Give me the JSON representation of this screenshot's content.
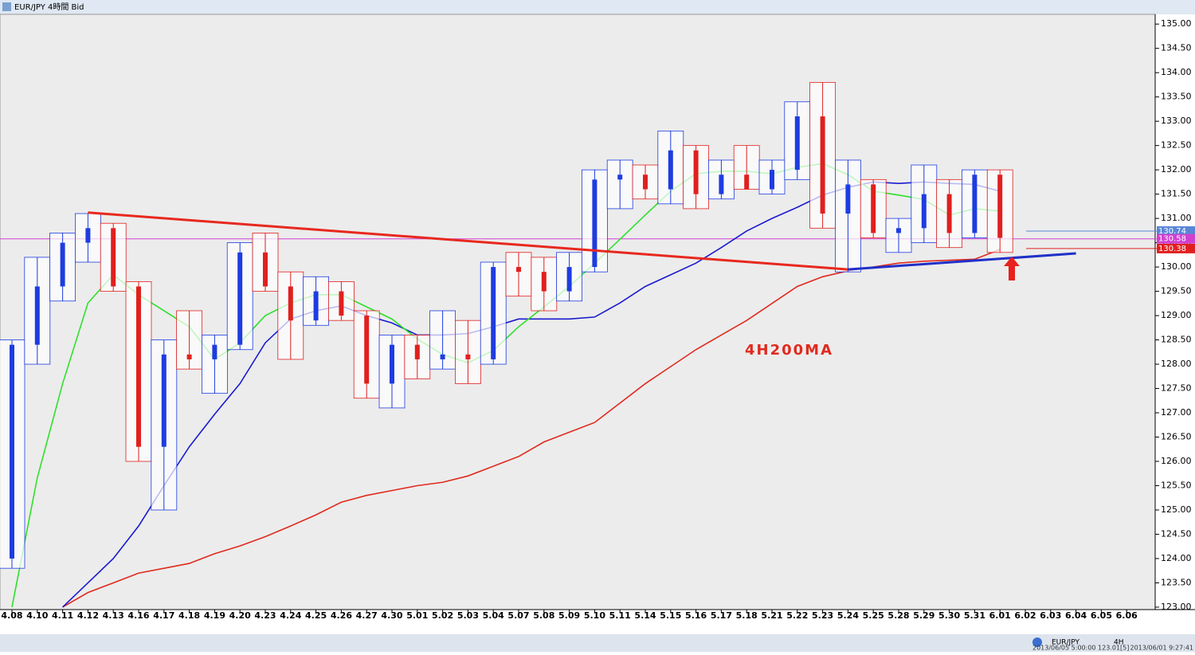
{
  "window_title": "EUR/JPY 4時間 Bid",
  "status": {
    "symbol": "EUR/JPY",
    "period": "4H",
    "left_info": "2013/06/05 5:00:00  123.01[5]",
    "right_info": "2013/06/01 9:27:41"
  },
  "chart_data": {
    "type": "candlestick",
    "categories": [
      "4.08",
      "4.10",
      "4.11",
      "4.12",
      "4.13",
      "4.16",
      "4.17",
      "4.18",
      "4.19",
      "4.20",
      "4.23",
      "4.24",
      "4.25",
      "4.26",
      "4.27",
      "4.30",
      "5.01",
      "5.02",
      "5.03",
      "5.04",
      "5.07",
      "5.08",
      "5.09",
      "5.10",
      "5.11",
      "5.14",
      "5.15",
      "5.16",
      "5.17",
      "5.18",
      "5.21",
      "5.22",
      "5.23",
      "5.24",
      "5.25",
      "5.28",
      "5.29",
      "5.30",
      "5.31",
      "6.01",
      "6.02",
      "6.03",
      "6.04",
      "6.05",
      "6.06"
    ],
    "open": [
      124.0,
      128.4,
      129.6,
      130.5,
      130.8,
      129.6,
      126.3,
      128.2,
      128.1,
      128.4,
      130.3,
      129.6,
      128.9,
      129.5,
      129.0,
      127.6,
      128.4,
      128.1,
      128.2,
      128.1,
      130.0,
      129.9,
      129.5,
      130.0,
      131.8,
      131.9,
      131.6,
      132.4,
      131.5,
      131.9,
      131.6,
      132.0,
      133.1,
      131.1,
      131.7,
      130.7,
      130.8,
      131.5,
      130.7,
      131.9,
      null,
      null,
      null,
      null,
      null
    ],
    "high": [
      128.5,
      130.2,
      130.7,
      131.1,
      130.9,
      129.7,
      128.5,
      129.1,
      128.6,
      130.5,
      130.7,
      129.9,
      129.8,
      129.7,
      129.1,
      128.6,
      128.6,
      129.1,
      128.9,
      130.1,
      130.3,
      130.2,
      130.3,
      132.0,
      132.2,
      132.1,
      132.8,
      132.5,
      132.2,
      132.5,
      132.2,
      133.4,
      133.8,
      132.2,
      131.8,
      131.0,
      132.1,
      131.8,
      132.0,
      132.0,
      null,
      null,
      null,
      null,
      null
    ],
    "low": [
      123.8,
      128.0,
      129.3,
      130.1,
      129.5,
      126.0,
      125.0,
      127.9,
      127.4,
      128.3,
      129.5,
      128.1,
      128.8,
      128.9,
      127.3,
      127.1,
      127.7,
      127.9,
      127.6,
      128.0,
      129.4,
      129.1,
      129.3,
      129.9,
      131.2,
      131.4,
      131.3,
      131.2,
      131.4,
      131.6,
      131.5,
      131.8,
      130.8,
      129.9,
      130.6,
      130.3,
      130.5,
      130.4,
      130.6,
      130.3,
      null,
      null,
      null,
      null,
      null
    ],
    "close": [
      128.4,
      129.6,
      130.5,
      130.8,
      129.6,
      126.3,
      128.2,
      128.1,
      128.4,
      130.3,
      129.6,
      128.9,
      129.5,
      129.0,
      127.6,
      128.4,
      128.1,
      128.2,
      128.1,
      130.0,
      129.9,
      129.5,
      130.0,
      131.8,
      131.9,
      131.6,
      132.4,
      131.5,
      131.9,
      131.6,
      132.0,
      133.1,
      131.1,
      131.7,
      130.7,
      130.8,
      131.5,
      130.7,
      131.9,
      130.6,
      null,
      null,
      null,
      null,
      null
    ],
    "up_color": "#1e3ce0",
    "down_color": "#e0201e",
    "ylim": [
      122.95,
      135.2
    ],
    "yticks": [
      {
        "value": 123,
        "label": "123.00"
      },
      {
        "value": 123.5,
        "label": "123.50"
      },
      {
        "value": 124,
        "label": "124.00"
      },
      {
        "value": 124.5,
        "label": "124.50"
      },
      {
        "value": 125,
        "label": "125.00"
      },
      {
        "value": 125.5,
        "label": "125.50"
      },
      {
        "value": 126,
        "label": "126.00"
      },
      {
        "value": 126.5,
        "label": "126.50"
      },
      {
        "value": 127,
        "label": "127.00"
      },
      {
        "value": 127.5,
        "label": "127.50"
      },
      {
        "value": 128,
        "label": "128.00"
      },
      {
        "value": 128.5,
        "label": "128.50"
      },
      {
        "value": 129,
        "label": "129.00"
      },
      {
        "value": 129.5,
        "label": "129.50"
      },
      {
        "value": 130,
        "label": "130.00"
      },
      {
        "value": 130.5,
        "label": "130.50"
      },
      {
        "value": 131,
        "label": "131.00"
      },
      {
        "value": 131.5,
        "label": "131.50"
      },
      {
        "value": 132,
        "label": "132.00"
      },
      {
        "value": 132.5,
        "label": "132.50"
      },
      {
        "value": 133,
        "label": "133.00"
      },
      {
        "value": 133.5,
        "label": "133.50"
      },
      {
        "value": 134,
        "label": "134.00"
      },
      {
        "value": 134.5,
        "label": "134.50"
      },
      {
        "value": 135,
        "label": "135.00"
      }
    ],
    "overlays": [
      {
        "color": "#e02a1e",
        "values": [
          null,
          null,
          123.0,
          123.3,
          123.5,
          123.7,
          123.8,
          123.9,
          124.1,
          124.26,
          124.45,
          124.67,
          124.9,
          125.16,
          125.3,
          125.4,
          125.5,
          125.57,
          125.7,
          125.9,
          126.1,
          126.4,
          126.6,
          126.8,
          127.2,
          127.6,
          127.95,
          128.3,
          128.6,
          128.9,
          129.25,
          129.6,
          129.8,
          129.92,
          130.0,
          130.08,
          130.12,
          130.14,
          130.16,
          130.36,
          null,
          null,
          null,
          null,
          null
        ]
      },
      {
        "color": "#1a1ad0",
        "values": [
          null,
          null,
          123.0,
          123.5,
          124.0,
          124.67,
          125.5,
          126.3,
          126.97,
          127.6,
          128.44,
          128.93,
          129.1,
          129.2,
          129.0,
          128.85,
          128.6,
          128.6,
          128.63,
          128.77,
          128.93,
          128.93,
          128.93,
          128.97,
          129.26,
          129.6,
          129.84,
          130.08,
          130.4,
          130.74,
          131.0,
          131.23,
          131.48,
          131.64,
          131.75,
          131.72,
          131.75,
          131.72,
          131.7,
          131.56,
          null,
          null,
          null,
          null,
          null
        ]
      },
      {
        "color": "#2ee02a",
        "values": [
          123.0,
          125.66,
          127.6,
          129.26,
          129.84,
          129.43,
          129.1,
          128.77,
          128.1,
          128.44,
          129.0,
          129.26,
          129.43,
          129.43,
          129.18,
          128.93,
          128.52,
          128.2,
          128.03,
          128.28,
          128.77,
          129.18,
          129.6,
          130.08,
          130.57,
          131.07,
          131.56,
          131.92,
          131.97,
          131.97,
          131.92,
          132.05,
          132.13,
          131.9,
          131.56,
          131.48,
          131.39,
          131.07,
          131.2,
          131.15,
          null,
          null,
          null,
          null,
          null
        ]
      }
    ],
    "trendlines": [
      {
        "color": "#e8281e",
        "values": [
          null,
          null,
          null,
          131.12,
          null,
          null,
          null,
          null,
          null,
          null,
          null,
          null,
          null,
          null,
          null,
          null,
          null,
          null,
          null,
          null,
          null,
          null,
          null,
          null,
          null,
          null,
          null,
          null,
          null,
          null,
          null,
          null,
          null,
          129.95,
          null,
          null,
          null,
          null,
          null,
          null,
          null,
          null,
          null,
          null,
          null
        ]
      },
      {
        "color": "#2030c8",
        "values": [
          null,
          null,
          null,
          null,
          null,
          null,
          null,
          null,
          null,
          null,
          null,
          null,
          null,
          null,
          null,
          null,
          null,
          null,
          null,
          null,
          null,
          null,
          null,
          null,
          null,
          null,
          null,
          null,
          null,
          null,
          null,
          null,
          null,
          129.95,
          null,
          null,
          null,
          null,
          null,
          null,
          null,
          null,
          130.28,
          null,
          null
        ]
      }
    ],
    "price_lines": [
      {
        "value": 130.74,
        "color": "#5a86d6"
      },
      {
        "value": 130.58,
        "color": "#d040d0"
      },
      {
        "value": 130.38,
        "color": "#e02020"
      }
    ],
    "annotation": "4H200MA",
    "annotation_color": "#e02a1e"
  }
}
